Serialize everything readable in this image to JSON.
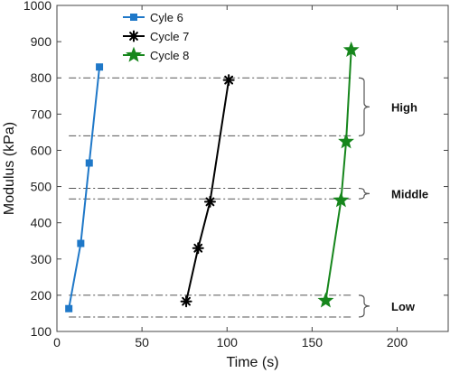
{
  "chart_data": {
    "type": "line",
    "title": "",
    "xlabel": "Time (s)",
    "ylabel": "Modulus (kPa)",
    "xlim": [
      0,
      230
    ],
    "ylim": [
      100,
      1000
    ],
    "xticks": [
      0,
      50,
      100,
      150,
      200
    ],
    "yticks": [
      100,
      200,
      300,
      400,
      500,
      600,
      700,
      800,
      900,
      1000
    ],
    "grid": false,
    "legend_position": "top-left",
    "series": [
      {
        "name": "Cyle 6",
        "color": "#1f78c8",
        "marker": "square",
        "points": [
          {
            "x": 7,
            "y": 163
          },
          {
            "x": 14,
            "y": 343
          },
          {
            "x": 19,
            "y": 565
          },
          {
            "x": 25,
            "y": 830
          }
        ]
      },
      {
        "name": "Cycle 7",
        "color": "#000000",
        "marker": "asterisk",
        "points": [
          {
            "x": 76,
            "y": 183
          },
          {
            "x": 83,
            "y": 330
          },
          {
            "x": 90,
            "y": 458
          },
          {
            "x": 101,
            "y": 794
          }
        ]
      },
      {
        "name": "Cycle 8",
        "color": "#16861c",
        "marker": "star",
        "points": [
          {
            "x": 158,
            "y": 185
          },
          {
            "x": 167,
            "y": 462
          },
          {
            "x": 170,
            "y": 624
          },
          {
            "x": 173,
            "y": 877
          }
        ]
      }
    ],
    "reference_lines": [
      {
        "y": 800,
        "x_start": 7,
        "x_end": 173
      },
      {
        "y": 640,
        "x_start": 7,
        "x_end": 173
      },
      {
        "y": 495,
        "x_start": 7,
        "x_end": 173
      },
      {
        "y": 466,
        "x_start": 7,
        "x_end": 173
      },
      {
        "y": 200,
        "x_start": 7,
        "x_end": 173
      },
      {
        "y": 140,
        "x_start": 7,
        "x_end": 173
      }
    ],
    "bands": [
      {
        "label": "High",
        "y_low": 640,
        "y_high": 800
      },
      {
        "label": "Middle",
        "y_low": 466,
        "y_high": 495
      },
      {
        "label": "Low",
        "y_low": 140,
        "y_high": 200
      }
    ]
  }
}
